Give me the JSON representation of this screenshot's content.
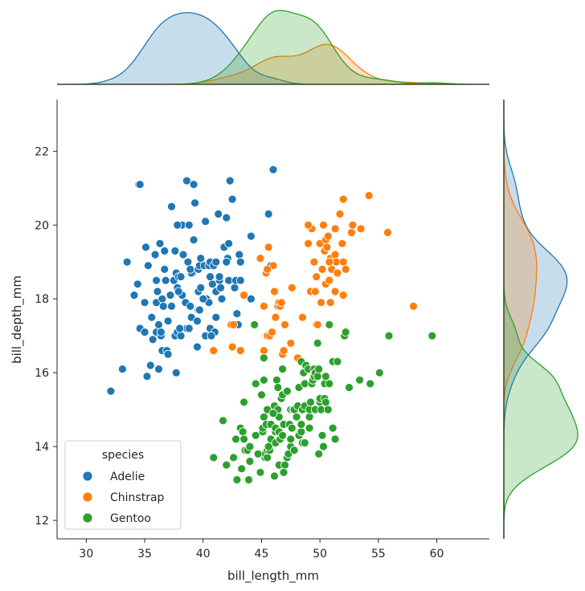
{
  "chart_data": {
    "type": "scatter",
    "title": "",
    "xlabel": "bill_length_mm",
    "ylabel": "bill_depth_mm",
    "xlim": [
      27.5,
      64.5
    ],
    "ylim": [
      11.5,
      23.4
    ],
    "xticks": [
      30,
      35,
      40,
      45,
      50,
      55,
      60
    ],
    "yticks": [
      12,
      14,
      16,
      18,
      20,
      22
    ],
    "legend": {
      "title": "species",
      "placement": "lower-left"
    },
    "marginals": {
      "top": "kde of bill_length_mm by species",
      "right": "kde of bill_depth_mm by species"
    },
    "series": [
      {
        "name": "Adelie",
        "color": "#1f77b4",
        "points": [
          [
            32.1,
            15.5
          ],
          [
            33.1,
            16.1
          ],
          [
            33.5,
            19.0
          ],
          [
            34.1,
            18.1
          ],
          [
            34.4,
            18.4
          ],
          [
            34.5,
            21.1
          ],
          [
            34.6,
            17.2
          ],
          [
            34.6,
            21.1
          ],
          [
            35.0,
            17.9
          ],
          [
            35.1,
            19.4
          ],
          [
            35.2,
            15.9
          ],
          [
            35.3,
            18.9
          ],
          [
            35.5,
            16.2
          ],
          [
            35.6,
            17.5
          ],
          [
            35.7,
            16.9
          ],
          [
            35.9,
            19.2
          ],
          [
            36.0,
            17.1
          ],
          [
            36.0,
            17.9
          ],
          [
            36.0,
            18.5
          ],
          [
            36.2,
            16.1
          ],
          [
            36.2,
            17.3
          ],
          [
            36.3,
            19.5
          ],
          [
            36.4,
            17.0
          ],
          [
            36.5,
            16.6
          ],
          [
            36.5,
            18.0
          ],
          [
            36.6,
            17.8
          ],
          [
            36.7,
            19.3
          ],
          [
            36.7,
            18.8
          ],
          [
            36.8,
            18.5
          ],
          [
            36.9,
            16.6
          ],
          [
            37.0,
            16.5
          ],
          [
            37.2,
            18.1
          ],
          [
            37.3,
            17.8
          ],
          [
            37.3,
            20.5
          ],
          [
            37.5,
            18.5
          ],
          [
            37.6,
            17.0
          ],
          [
            37.6,
            19.3
          ],
          [
            37.7,
            18.7
          ],
          [
            37.7,
            16.0
          ],
          [
            37.8,
            17.1
          ],
          [
            37.8,
            18.3
          ],
          [
            37.9,
            18.6
          ],
          [
            38.1,
            17.0
          ],
          [
            38.1,
            18.6
          ],
          [
            38.2,
            18.1
          ],
          [
            38.2,
            20.0
          ],
          [
            38.3,
            19.2
          ],
          [
            38.5,
            17.9
          ],
          [
            38.6,
            17.2
          ],
          [
            38.6,
            21.2
          ],
          [
            38.7,
            19.0
          ],
          [
            38.8,
            17.2
          ],
          [
            38.8,
            20.0
          ],
          [
            38.9,
            17.8
          ],
          [
            39.0,
            17.5
          ],
          [
            39.1,
            18.7
          ],
          [
            39.2,
            19.6
          ],
          [
            39.2,
            21.1
          ],
          [
            39.3,
            20.6
          ],
          [
            39.5,
            16.7
          ],
          [
            39.5,
            17.4
          ],
          [
            39.6,
            17.7
          ],
          [
            39.6,
            18.8
          ],
          [
            39.7,
            17.7
          ],
          [
            39.7,
            18.9
          ],
          [
            39.8,
            19.1
          ],
          [
            40.1,
            18.9
          ],
          [
            40.2,
            17.0
          ],
          [
            40.2,
            20.1
          ],
          [
            40.3,
            18.0
          ],
          [
            40.5,
            17.9
          ],
          [
            40.5,
            18.9
          ],
          [
            40.6,
            17.2
          ],
          [
            40.6,
            19.0
          ],
          [
            40.8,
            18.4
          ],
          [
            40.9,
            16.6
          ],
          [
            40.9,
            18.9
          ],
          [
            41.0,
            17.1
          ],
          [
            41.1,
            17.5
          ],
          [
            41.1,
            18.2
          ],
          [
            41.1,
            19.0
          ],
          [
            41.3,
            20.3
          ],
          [
            41.4,
            18.5
          ],
          [
            41.5,
            18.3
          ],
          [
            41.6,
            18.0
          ],
          [
            41.8,
            19.4
          ],
          [
            42.0,
            20.2
          ],
          [
            42.1,
            19.1
          ],
          [
            42.2,
            18.5
          ],
          [
            42.2,
            19.5
          ],
          [
            42.3,
            21.2
          ],
          [
            42.5,
            20.7
          ],
          [
            42.7,
            18.3
          ],
          [
            42.8,
            18.5
          ],
          [
            42.9,
            17.6
          ],
          [
            43.1,
            19.2
          ],
          [
            43.2,
            18.5
          ],
          [
            43.2,
            19.0
          ],
          [
            44.1,
            18.0
          ],
          [
            44.1,
            19.7
          ],
          [
            45.6,
            20.3
          ],
          [
            45.8,
            18.9
          ],
          [
            46.0,
            21.5
          ],
          [
            39.0,
            18.7
          ],
          [
            38.0,
            17.2
          ],
          [
            40.7,
            17.0
          ],
          [
            37.9,
            18.2
          ],
          [
            36.1,
            18.2
          ],
          [
            35.0,
            17.1
          ],
          [
            42.0,
            19.0
          ],
          [
            39.6,
            18.2
          ],
          [
            37.8,
            20.0
          ],
          [
            41.4,
            18.6
          ],
          [
            39.8,
            18.3
          ],
          [
            40.0,
            18.0
          ],
          [
            36.4,
            17.1
          ],
          [
            38.9,
            18.8
          ],
          [
            37.0,
            17.4
          ],
          [
            40.6,
            18.6
          ],
          [
            43.0,
            17.3
          ]
        ]
      },
      {
        "name": "Chinstrap",
        "color": "#ff7f0e",
        "points": [
          [
            40.9,
            16.6
          ],
          [
            42.4,
            17.3
          ],
          [
            42.5,
            16.7
          ],
          [
            42.6,
            17.3
          ],
          [
            43.2,
            16.6
          ],
          [
            43.5,
            18.1
          ],
          [
            44.9,
            19.1
          ],
          [
            45.2,
            16.6
          ],
          [
            45.2,
            17.8
          ],
          [
            45.4,
            18.7
          ],
          [
            45.5,
            17.0
          ],
          [
            45.6,
            19.4
          ],
          [
            45.7,
            17.0
          ],
          [
            45.9,
            17.1
          ],
          [
            46.0,
            18.9
          ],
          [
            46.1,
            18.2
          ],
          [
            46.2,
            17.5
          ],
          [
            46.4,
            17.8
          ],
          [
            46.5,
            17.9
          ],
          [
            46.6,
            17.8
          ],
          [
            46.7,
            17.9
          ],
          [
            46.8,
            16.5
          ],
          [
            46.9,
            16.6
          ],
          [
            47.0,
            17.3
          ],
          [
            47.5,
            16.8
          ],
          [
            47.6,
            18.3
          ],
          [
            48.1,
            16.4
          ],
          [
            48.5,
            17.5
          ],
          [
            49.0,
            19.5
          ],
          [
            49.2,
            18.2
          ],
          [
            49.3,
            19.9
          ],
          [
            49.5,
            19.0
          ],
          [
            49.6,
            18.2
          ],
          [
            49.7,
            17.3
          ],
          [
            49.8,
            17.3
          ],
          [
            50.0,
            19.5
          ],
          [
            50.1,
            17.9
          ],
          [
            50.2,
            18.8
          ],
          [
            50.3,
            20.0
          ],
          [
            50.4,
            19.3
          ],
          [
            50.5,
            18.4
          ],
          [
            50.5,
            19.6
          ],
          [
            50.6,
            19.4
          ],
          [
            50.7,
            19.7
          ],
          [
            50.8,
            18.5
          ],
          [
            50.9,
            17.9
          ],
          [
            50.9,
            19.1
          ],
          [
            51.0,
            18.8
          ],
          [
            51.3,
            18.2
          ],
          [
            51.3,
            19.2
          ],
          [
            51.3,
            19.9
          ],
          [
            51.4,
            19.0
          ],
          [
            51.5,
            18.7
          ],
          [
            51.7,
            20.3
          ],
          [
            51.9,
            19.5
          ],
          [
            52.0,
            18.1
          ],
          [
            52.0,
            19.0
          ],
          [
            52.0,
            20.7
          ],
          [
            52.2,
            18.8
          ],
          [
            52.7,
            19.8
          ],
          [
            53.5,
            19.9
          ],
          [
            54.2,
            20.8
          ],
          [
            55.8,
            19.8
          ],
          [
            58.0,
            17.8
          ],
          [
            49.0,
            20.0
          ],
          [
            50.8,
            19.0
          ],
          [
            52.8,
            20.0
          ],
          [
            49.7,
            18.6
          ],
          [
            45.5,
            18.8
          ]
        ]
      },
      {
        "name": "Gentoo",
        "color": "#2ca02c",
        "points": [
          [
            40.9,
            13.7
          ],
          [
            41.7,
            14.7
          ],
          [
            42.0,
            13.5
          ],
          [
            42.6,
            13.7
          ],
          [
            42.8,
            14.2
          ],
          [
            42.9,
            13.1
          ],
          [
            43.2,
            14.5
          ],
          [
            43.3,
            13.4
          ],
          [
            43.4,
            14.4
          ],
          [
            43.5,
            14.2
          ],
          [
            43.5,
            15.2
          ],
          [
            43.6,
            13.9
          ],
          [
            43.8,
            13.9
          ],
          [
            44.0,
            13.6
          ],
          [
            44.4,
            17.3
          ],
          [
            44.5,
            14.3
          ],
          [
            44.5,
            15.7
          ],
          [
            44.9,
            13.3
          ],
          [
            44.9,
            13.8
          ],
          [
            45.0,
            15.4
          ],
          [
            45.1,
            14.4
          ],
          [
            45.1,
            14.5
          ],
          [
            45.2,
            13.8
          ],
          [
            45.2,
            14.8
          ],
          [
            45.2,
            15.8
          ],
          [
            45.2,
            16.4
          ],
          [
            45.3,
            13.7
          ],
          [
            45.3,
            13.8
          ],
          [
            45.4,
            14.6
          ],
          [
            45.5,
            13.7
          ],
          [
            45.5,
            13.9
          ],
          [
            45.5,
            15.0
          ],
          [
            45.7,
            13.9
          ],
          [
            45.8,
            14.2
          ],
          [
            45.8,
            14.6
          ],
          [
            46.1,
            13.2
          ],
          [
            46.1,
            15.1
          ],
          [
            46.2,
            14.1
          ],
          [
            46.2,
            14.4
          ],
          [
            46.2,
            14.5
          ],
          [
            46.3,
            15.8
          ],
          [
            46.4,
            15.0
          ],
          [
            46.4,
            15.6
          ],
          [
            46.5,
            13.5
          ],
          [
            46.5,
            14.4
          ],
          [
            46.5,
            14.8
          ],
          [
            46.6,
            14.2
          ],
          [
            46.7,
            15.3
          ],
          [
            46.8,
            14.3
          ],
          [
            46.8,
            15.4
          ],
          [
            46.8,
            16.1
          ],
          [
            46.9,
            14.6
          ],
          [
            47.2,
            13.7
          ],
          [
            47.2,
            15.5
          ],
          [
            47.3,
            13.8
          ],
          [
            47.4,
            14.6
          ],
          [
            47.5,
            14.0
          ],
          [
            47.5,
            14.2
          ],
          [
            47.5,
            15.0
          ],
          [
            47.6,
            14.5
          ],
          [
            47.7,
            15.0
          ],
          [
            47.8,
            15.0
          ],
          [
            48.1,
            15.1
          ],
          [
            48.2,
            14.3
          ],
          [
            48.2,
            15.6
          ],
          [
            48.4,
            14.4
          ],
          [
            48.4,
            14.6
          ],
          [
            48.4,
            16.3
          ],
          [
            48.5,
            14.1
          ],
          [
            48.5,
            15.0
          ],
          [
            48.6,
            16.0
          ],
          [
            48.7,
            14.1
          ],
          [
            48.7,
            15.1
          ],
          [
            48.7,
            15.7
          ],
          [
            48.8,
            16.2
          ],
          [
            49.0,
            16.1
          ],
          [
            49.1,
            14.5
          ],
          [
            49.1,
            14.8
          ],
          [
            49.1,
            15.0
          ],
          [
            49.2,
            15.2
          ],
          [
            49.3,
            15.7
          ],
          [
            49.4,
            15.8
          ],
          [
            49.5,
            15.9
          ],
          [
            49.5,
            16.1
          ],
          [
            49.6,
            15.0
          ],
          [
            49.6,
            16.0
          ],
          [
            49.8,
            15.9
          ],
          [
            49.8,
            16.8
          ],
          [
            49.9,
            16.1
          ],
          [
            50.0,
            15.2
          ],
          [
            50.0,
            15.3
          ],
          [
            50.1,
            15.0
          ],
          [
            50.2,
            14.3
          ],
          [
            50.4,
            15.3
          ],
          [
            50.4,
            15.7
          ],
          [
            50.5,
            15.2
          ],
          [
            50.5,
            15.9
          ],
          [
            50.7,
            15.0
          ],
          [
            50.8,
            15.7
          ],
          [
            50.8,
            17.3
          ],
          [
            51.1,
            14.5
          ],
          [
            51.1,
            16.3
          ],
          [
            51.3,
            14.2
          ],
          [
            51.5,
            16.3
          ],
          [
            52.1,
            17.0
          ],
          [
            52.2,
            17.1
          ],
          [
            52.5,
            15.6
          ],
          [
            53.4,
            15.8
          ],
          [
            54.3,
            15.7
          ],
          [
            55.1,
            16.0
          ],
          [
            55.9,
            17.0
          ],
          [
            59.6,
            17.0
          ],
          [
            44.0,
            14.0
          ],
          [
            47.0,
            13.5
          ],
          [
            48.0,
            14.8
          ],
          [
            46.0,
            14.9
          ],
          [
            45.6,
            14.0
          ],
          [
            47.8,
            13.9
          ],
          [
            50.3,
            14.0
          ],
          [
            44.7,
            13.8
          ],
          [
            49.9,
            13.8
          ],
          [
            46.9,
            13.3
          ],
          [
            43.9,
            13.1
          ]
        ]
      }
    ]
  }
}
